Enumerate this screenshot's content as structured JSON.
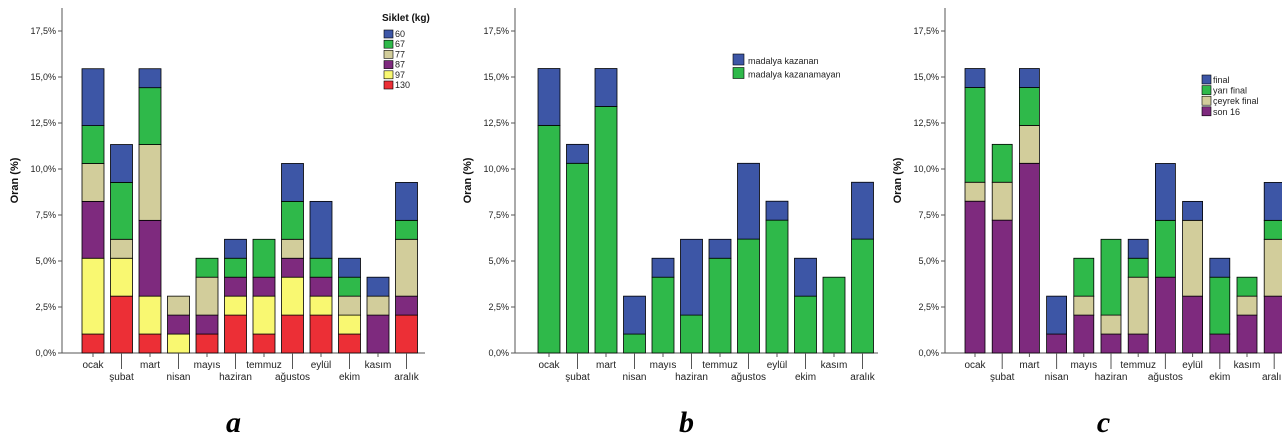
{
  "colors": {
    "60": "#3d56a6",
    "67": "#2fb94a",
    "77": "#d2cd9b",
    "87": "#7e2a7e",
    "97": "#f9f871",
    "130": "#ec2f36",
    "kazanan": "#3d56a6",
    "kazanamayan": "#2fb94a",
    "final": "#3d56a6",
    "yari_final": "#2fb94a",
    "ceyrek_final": "#d2cd9b",
    "son16": "#7e2a7e"
  },
  "chart_data": [
    {
      "type": "bar",
      "stacked": true,
      "panel": "a",
      "ylabel": "Oran (%)",
      "ylim": [
        0,
        18.75
      ],
      "yticks": [
        "0,0%",
        "2,5%",
        "5,0%",
        "7,5%",
        "10,0%",
        "12,5%",
        "15,0%",
        "17,5%"
      ],
      "categories": [
        "ocak",
        "şubat",
        "mart",
        "nisan",
        "mayıs",
        "haziran",
        "temmuz",
        "ağustos",
        "eylül",
        "ekim",
        "kasım",
        "aralık"
      ],
      "legend": {
        "title": "Siklet (kg)",
        "position": "top-right"
      },
      "series": [
        {
          "name": "130",
          "color_key": "130",
          "values": [
            1.03,
            3.09,
            1.03,
            0,
            1.03,
            2.06,
            1.03,
            2.06,
            2.06,
            1.03,
            0,
            2.06
          ]
        },
        {
          "name": "97",
          "color_key": "97",
          "values": [
            4.12,
            2.06,
            2.06,
            1.03,
            0,
            1.03,
            2.06,
            2.06,
            1.03,
            1.03,
            0,
            0
          ]
        },
        {
          "name": "87",
          "color_key": "87",
          "values": [
            3.09,
            0,
            4.12,
            1.03,
            1.03,
            1.03,
            1.03,
            1.03,
            1.03,
            0,
            2.06,
            1.03
          ]
        },
        {
          "name": "77",
          "color_key": "77",
          "values": [
            2.06,
            1.03,
            4.12,
            1.03,
            2.06,
            0,
            0,
            1.03,
            0,
            1.03,
            1.03,
            3.09
          ]
        },
        {
          "name": "67",
          "color_key": "67",
          "values": [
            2.06,
            3.09,
            3.09,
            0,
            1.03,
            1.03,
            2.06,
            2.06,
            1.03,
            1.03,
            0,
            1.03
          ]
        },
        {
          "name": "60",
          "color_key": "60",
          "values": [
            3.09,
            2.06,
            1.03,
            0,
            0,
            1.03,
            0,
            2.06,
            3.09,
            1.03,
            1.03,
            2.06
          ]
        }
      ]
    },
    {
      "type": "bar",
      "stacked": true,
      "panel": "b",
      "ylabel": "Oran (%)",
      "ylim": [
        0,
        18.75
      ],
      "yticks": [
        "0,0%",
        "2,5%",
        "5,0%",
        "7,5%",
        "10,0%",
        "12,5%",
        "15,0%",
        "17,5%"
      ],
      "categories": [
        "ocak",
        "şubat",
        "mart",
        "nisan",
        "mayıs",
        "haziran",
        "temmuz",
        "ağustos",
        "eylül",
        "ekim",
        "kasım",
        "aralık"
      ],
      "legend": {
        "title": "",
        "position": "top-right"
      },
      "series": [
        {
          "name": "madalya kazanamayan",
          "color_key": "kazanamayan",
          "values": [
            12.37,
            10.31,
            13.4,
            1.03,
            4.12,
            2.06,
            5.15,
            6.19,
            7.22,
            3.09,
            4.12,
            6.19
          ]
        },
        {
          "name": "madalya kazanan",
          "color_key": "kazanan",
          "values": [
            3.09,
            1.03,
            2.06,
            2.06,
            1.03,
            4.12,
            1.03,
            4.12,
            1.03,
            2.06,
            0,
            3.09
          ]
        }
      ]
    },
    {
      "type": "bar",
      "stacked": true,
      "panel": "c",
      "ylabel": "Oran (%)",
      "ylim": [
        0,
        18.75
      ],
      "yticks": [
        "0,0%",
        "2,5%",
        "5,0%",
        "7,5%",
        "10,0%",
        "12,5%",
        "15,0%",
        "17,5%"
      ],
      "categories": [
        "ocak",
        "şubat",
        "mart",
        "nisan",
        "mayıs",
        "haziran",
        "temmuz",
        "ağustos",
        "eylül",
        "ekim",
        "kasım",
        "aralık"
      ],
      "legend": {
        "title": "",
        "position": "top-right"
      },
      "series": [
        {
          "name": "son 16",
          "color_key": "son16",
          "values": [
            8.25,
            7.22,
            10.31,
            1.03,
            2.06,
            1.03,
            1.03,
            4.12,
            3.09,
            1.03,
            2.06,
            3.09
          ]
        },
        {
          "name": "çeyrek final",
          "color_key": "ceyrek_final",
          "values": [
            1.03,
            2.06,
            2.06,
            0,
            1.03,
            1.03,
            3.09,
            0,
            4.12,
            0,
            1.03,
            3.09
          ]
        },
        {
          "name": "yarı final",
          "color_key": "yari_final",
          "values": [
            5.15,
            2.06,
            2.06,
            0,
            2.06,
            4.12,
            1.03,
            3.09,
            0,
            3.09,
            1.03,
            1.03
          ]
        },
        {
          "name": "final",
          "color_key": "final",
          "values": [
            1.03,
            0,
            1.03,
            2.06,
            0,
            0,
            1.03,
            3.09,
            1.03,
            1.03,
            0,
            2.06
          ]
        }
      ]
    }
  ]
}
